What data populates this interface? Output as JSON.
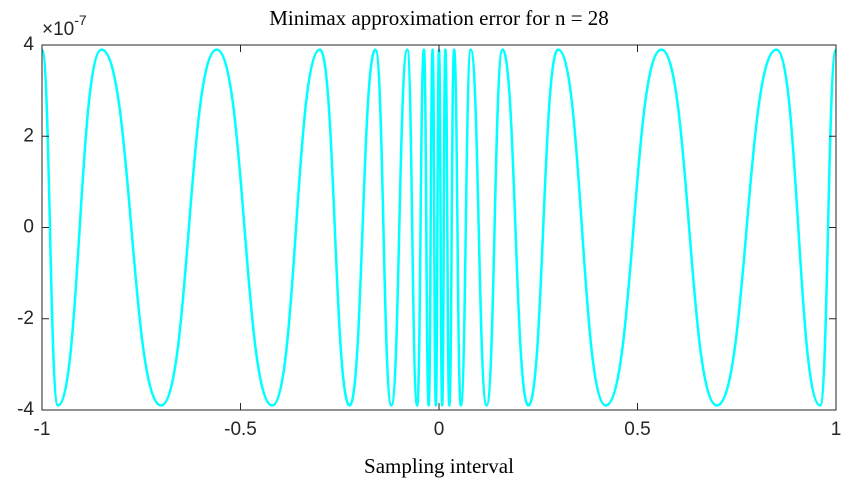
{
  "chart_data": {
    "type": "line",
    "title": "Minimax approximation error for n = 28",
    "xlabel": "Sampling interval",
    "y_multiplier": {
      "base": "×10",
      "exponent": "-7"
    },
    "x": [
      -1,
      -0.96,
      -0.85,
      -0.7,
      -0.56,
      -0.42,
      -0.3,
      -0.225,
      -0.16,
      -0.12,
      -0.08,
      -0.055,
      -0.038,
      -0.026,
      -0.016,
      -0.008,
      0,
      0.008,
      0.016,
      0.026,
      0.038,
      0.055,
      0.08,
      0.12,
      0.16,
      0.225,
      0.3,
      0.42,
      0.56,
      0.7,
      0.85,
      0.96,
      1
    ],
    "series": [
      {
        "color": "#00ffff",
        "values": [
          3.9,
          -3.9,
          3.9,
          -3.9,
          3.9,
          -3.9,
          3.9,
          -3.9,
          3.9,
          -3.9,
          3.9,
          -3.9,
          3.9,
          -3.9,
          3.9,
          -3.9,
          3.9,
          -3.9,
          3.9,
          -3.9,
          3.9,
          -3.9,
          3.9,
          -3.9,
          3.9,
          -3.9,
          3.9,
          -3.9,
          3.9,
          -3.9,
          3.9,
          -3.9,
          3.9
        ]
      }
    ],
    "xlim": [
      -1,
      1
    ],
    "xticks": [
      -1,
      -0.5,
      0,
      0.5,
      1
    ],
    "ylim": [
      -4,
      4
    ],
    "yticks": [
      -4,
      -2,
      0,
      2,
      4
    ]
  }
}
